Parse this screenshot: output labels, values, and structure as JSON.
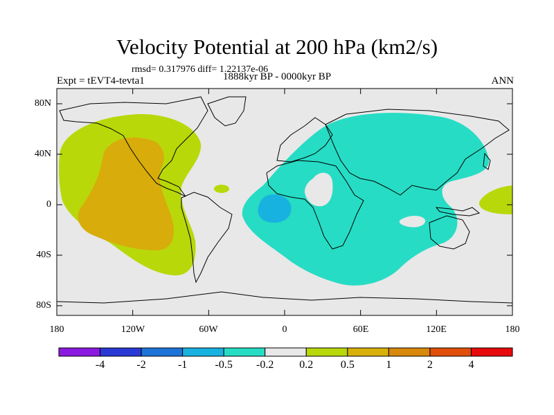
{
  "title": "Velocity Potential at 200 hPa (km2/s)",
  "stats": "rmsd= 0.317976 diff= 1.22137e-06",
  "experiment": "Expt = tEVT4-tevta1",
  "period": "1888kyr BP - 0000kyr BP",
  "season": "ANN",
  "lat_labels": [
    "80N",
    "40N",
    "0",
    "40S",
    "80S"
  ],
  "lon_labels": [
    "180",
    "120W",
    "60W",
    "0",
    "60E",
    "120E",
    "180"
  ],
  "colorbar": {
    "labels": [
      "-4",
      "-2",
      "-1",
      "-0.5",
      "-0.2",
      "0.2",
      "0.5",
      "1",
      "2",
      "4"
    ],
    "colors": [
      "#8a1ae0",
      "#2a39d6",
      "#1d73d8",
      "#18b2e0",
      "#26dcc4",
      "#e8e8e8",
      "#b8d80a",
      "#d8b008",
      "#d8880a",
      "#e0500a",
      "#e80a0a"
    ]
  },
  "field_colors": {
    "neutral": "#e8e8e8",
    "pos_0_2": "#b8d80a",
    "pos_0_5": "#d8ac0a",
    "neg_0_2": "#26dcc4",
    "neg_0_5": "#18b2e0"
  }
}
